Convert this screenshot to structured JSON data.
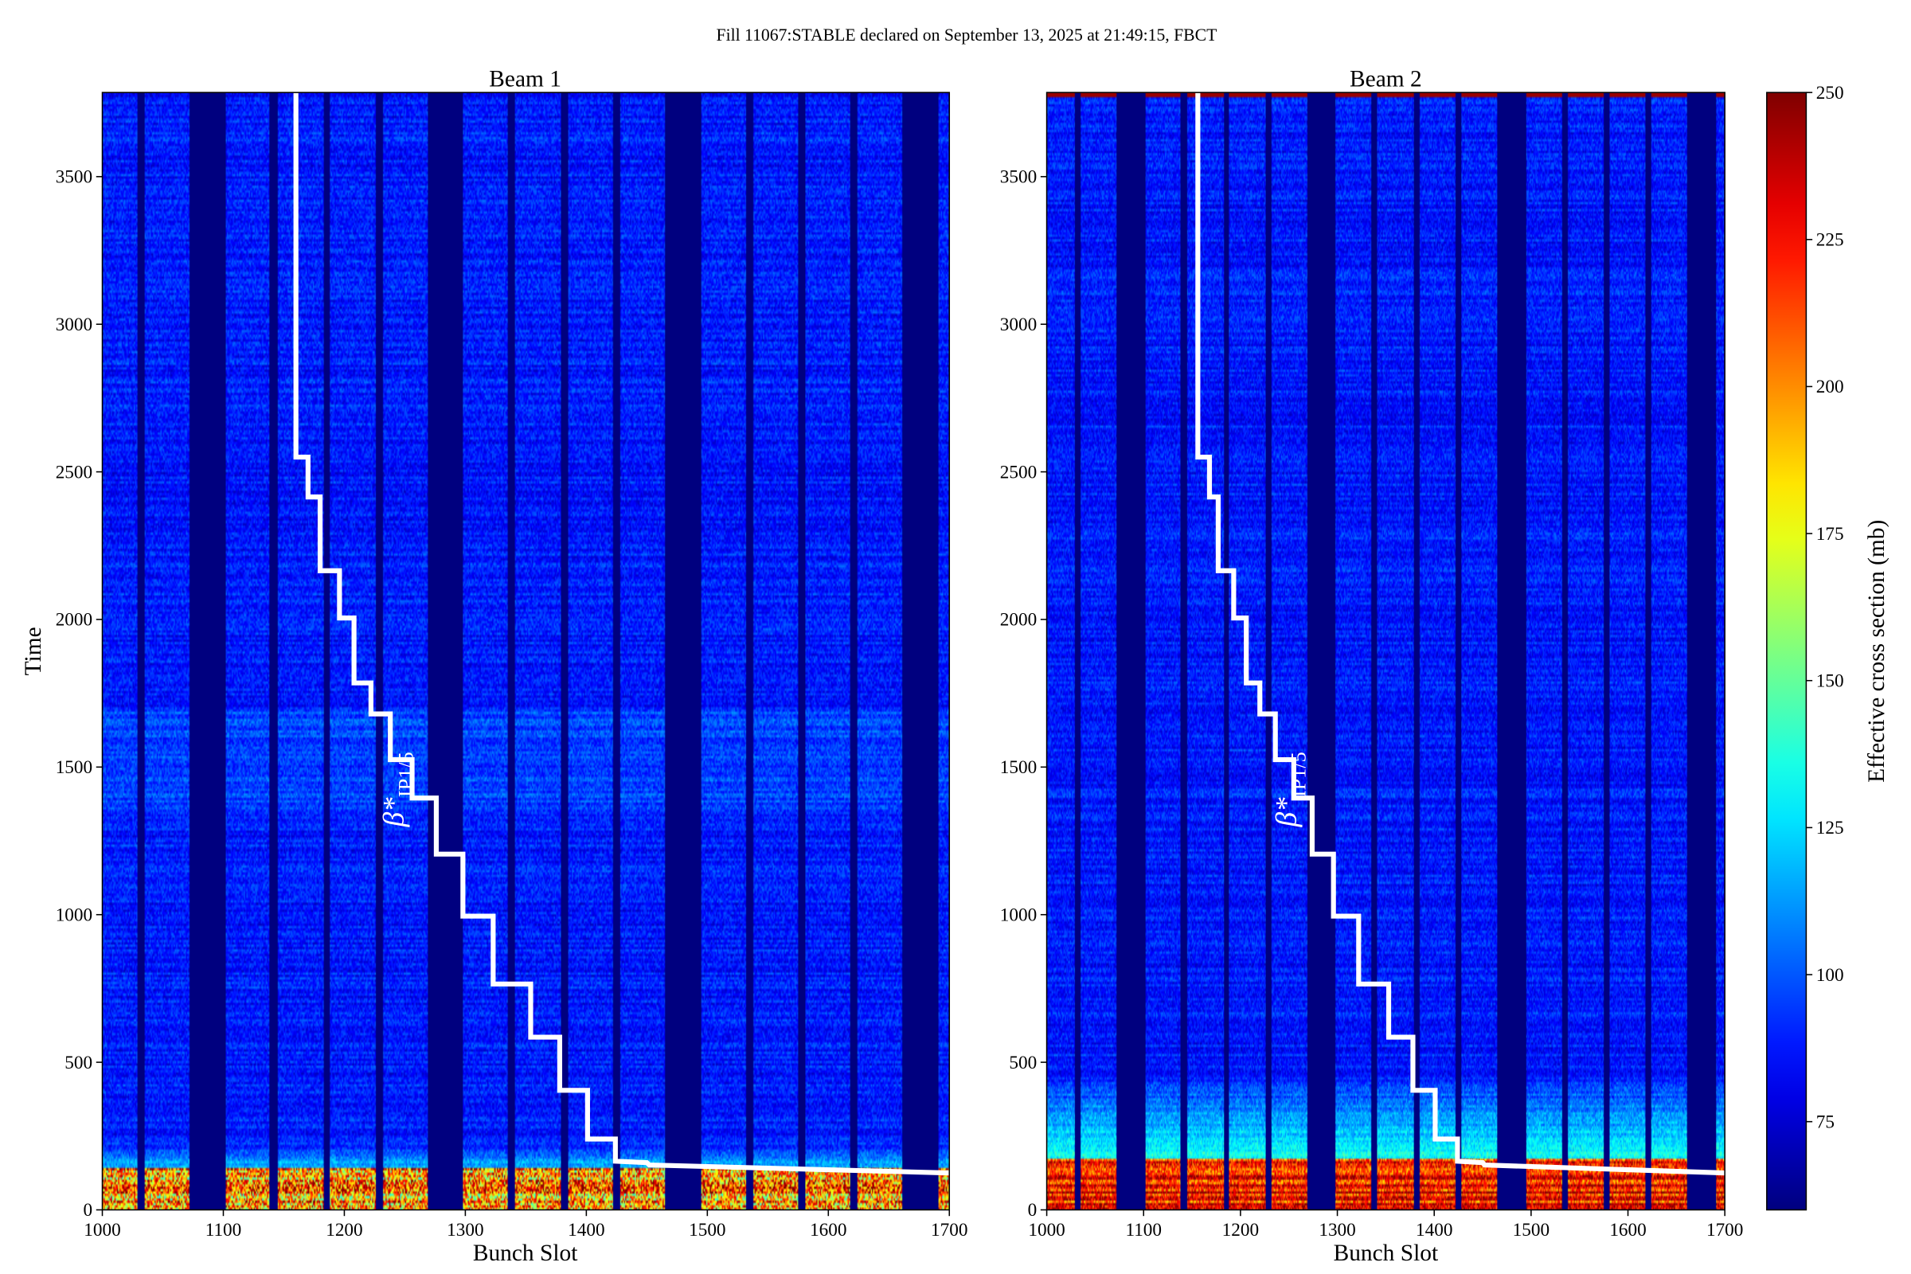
{
  "suptitle": "Fill 11067:STABLE declared on September 13, 2025 at 21:49:15, FBCT",
  "colorbar": {
    "label": "Effective cross section (mb)",
    "range": [
      60,
      250
    ],
    "ticks": [
      75,
      100,
      125,
      150,
      175,
      200,
      225,
      250
    ],
    "colormap": "jet"
  },
  "chart_data": [
    {
      "type": "heatmap",
      "title": "Beam 1",
      "xlabel": "Bunch Slot",
      "ylabel": "Time",
      "xlim": [
        1000,
        1700
      ],
      "ylim": [
        0,
        3785
      ],
      "xticks": [
        1000,
        1100,
        1200,
        1300,
        1400,
        1500,
        1600,
        1700
      ],
      "yticks": [
        0,
        500,
        1000,
        1500,
        2000,
        2500,
        3000,
        3500
      ],
      "filled_bunch_trains": [
        [
          1000,
          1028
        ],
        [
          1035,
          1071
        ],
        [
          1102,
          1137
        ],
        [
          1145,
          1182
        ],
        [
          1188,
          1225
        ],
        [
          1232,
          1268
        ],
        [
          1298,
          1334
        ],
        [
          1341,
          1378
        ],
        [
          1385,
          1421
        ],
        [
          1428,
          1464
        ],
        [
          1495,
          1531
        ],
        [
          1538,
          1574
        ],
        [
          1581,
          1617
        ],
        [
          1624,
          1660
        ],
        [
          1691,
          1700
        ]
      ],
      "typical_value": 88,
      "early_high_region": {
        "time_max": 145,
        "value_range": [
          150,
          250
        ]
      },
      "overlay_label": "β*",
      "overlay_label_sub": "IP1/5",
      "overlay_line_color": "#ffffff",
      "overlay_line": [
        [
          1160,
          3785
        ],
        [
          1160,
          2550
        ],
        [
          1170,
          2550
        ],
        [
          1170,
          2415
        ],
        [
          1180,
          2415
        ],
        [
          1180,
          2165
        ],
        [
          1196,
          2165
        ],
        [
          1196,
          2005
        ],
        [
          1208,
          2005
        ],
        [
          1208,
          1785
        ],
        [
          1222,
          1785
        ],
        [
          1222,
          1680
        ],
        [
          1238,
          1680
        ],
        [
          1238,
          1525
        ],
        [
          1256,
          1525
        ],
        [
          1256,
          1395
        ],
        [
          1276,
          1395
        ],
        [
          1276,
          1205
        ],
        [
          1298,
          1205
        ],
        [
          1298,
          995
        ],
        [
          1323,
          995
        ],
        [
          1323,
          765
        ],
        [
          1354,
          765
        ],
        [
          1354,
          585
        ],
        [
          1378,
          585
        ],
        [
          1378,
          405
        ],
        [
          1401,
          405
        ],
        [
          1401,
          240
        ],
        [
          1424,
          240
        ],
        [
          1424,
          165
        ],
        [
          1450,
          160
        ],
        [
          1452,
          152
        ],
        [
          1700,
          125
        ]
      ]
    },
    {
      "type": "heatmap",
      "title": "Beam 2",
      "xlabel": "Bunch Slot",
      "ylabel": "",
      "xlim": [
        1000,
        1700
      ],
      "ylim": [
        0,
        3785
      ],
      "xticks": [
        1000,
        1100,
        1200,
        1300,
        1400,
        1500,
        1600,
        1700
      ],
      "yticks": [
        0,
        500,
        1000,
        1500,
        2000,
        2500,
        3000,
        3500
      ],
      "filled_bunch_trains": [
        [
          1000,
          1028
        ],
        [
          1035,
          1071
        ],
        [
          1102,
          1137
        ],
        [
          1145,
          1182
        ],
        [
          1188,
          1225
        ],
        [
          1232,
          1268
        ],
        [
          1298,
          1334
        ],
        [
          1341,
          1378
        ],
        [
          1385,
          1421
        ],
        [
          1428,
          1464
        ],
        [
          1495,
          1531
        ],
        [
          1538,
          1574
        ],
        [
          1581,
          1617
        ],
        [
          1624,
          1660
        ],
        [
          1691,
          1700
        ]
      ],
      "typical_value": 88,
      "early_high_region": {
        "time_max": 170,
        "value_range": [
          200,
          250
        ]
      },
      "overlay_label": "β*",
      "overlay_label_sub": "IP1/5",
      "overlay_line_color": "#ffffff",
      "overlay_line": [
        [
          1156,
          3785
        ],
        [
          1156,
          2550
        ],
        [
          1168,
          2550
        ],
        [
          1168,
          2415
        ],
        [
          1177,
          2415
        ],
        [
          1177,
          2165
        ],
        [
          1193,
          2165
        ],
        [
          1193,
          2005
        ],
        [
          1206,
          2005
        ],
        [
          1206,
          1785
        ],
        [
          1220,
          1785
        ],
        [
          1220,
          1680
        ],
        [
          1236,
          1680
        ],
        [
          1236,
          1525
        ],
        [
          1255,
          1525
        ],
        [
          1255,
          1395
        ],
        [
          1274,
          1395
        ],
        [
          1274,
          1205
        ],
        [
          1296,
          1205
        ],
        [
          1296,
          995
        ],
        [
          1322,
          995
        ],
        [
          1322,
          765
        ],
        [
          1353,
          765
        ],
        [
          1353,
          585
        ],
        [
          1378,
          585
        ],
        [
          1378,
          405
        ],
        [
          1401,
          405
        ],
        [
          1401,
          240
        ],
        [
          1424,
          240
        ],
        [
          1424,
          165
        ],
        [
          1450,
          160
        ],
        [
          1452,
          152
        ],
        [
          1700,
          125
        ]
      ]
    }
  ]
}
